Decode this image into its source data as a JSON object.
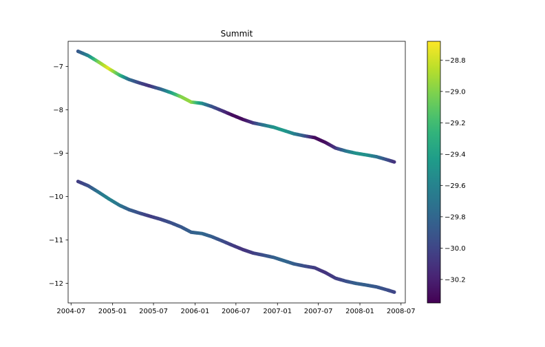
{
  "chart_data": {
    "type": "scatter",
    "title": "Summit",
    "xlabel": "",
    "ylabel": "",
    "x_range": [
      "2004-06-18",
      "2008-07-20"
    ],
    "ylim": [
      -12.45,
      -6.42
    ],
    "grid": false,
    "x_ticks": [
      {
        "date": "2004-07-01",
        "label": "2004-07"
      },
      {
        "date": "2005-01-01",
        "label": "2005-01"
      },
      {
        "date": "2005-07-01",
        "label": "2005-07"
      },
      {
        "date": "2006-01-01",
        "label": "2006-01"
      },
      {
        "date": "2006-07-01",
        "label": "2006-07"
      },
      {
        "date": "2007-01-01",
        "label": "2007-01"
      },
      {
        "date": "2007-07-01",
        "label": "2007-07"
      },
      {
        "date": "2008-01-01",
        "label": "2008-01"
      },
      {
        "date": "2008-07-01",
        "label": "2008-07"
      }
    ],
    "y_ticks": [
      {
        "value": -7,
        "label": "−7"
      },
      {
        "value": -8,
        "label": "−8"
      },
      {
        "value": -9,
        "label": "−9"
      },
      {
        "value": -10,
        "label": "−10"
      },
      {
        "value": -11,
        "label": "−11"
      },
      {
        "value": -12,
        "label": "−12"
      }
    ],
    "colorbar": {
      "cmap": "viridis",
      "vmin": -30.35,
      "vmax": -28.68,
      "ticks": [
        {
          "value": -28.8,
          "label": "−28.8"
        },
        {
          "value": -29.0,
          "label": "−29.0"
        },
        {
          "value": -29.2,
          "label": "−29.2"
        },
        {
          "value": -29.4,
          "label": "−29.4"
        },
        {
          "value": -29.6,
          "label": "−29.6"
        },
        {
          "value": -29.8,
          "label": "−29.8"
        },
        {
          "value": -30.0,
          "label": "−30.0"
        },
        {
          "value": -30.2,
          "label": "−30.2"
        }
      ]
    },
    "series": [
      {
        "points": [
          {
            "x": "2004-08-01",
            "y": -6.65,
            "c": -29.9
          },
          {
            "x": "2004-09-15",
            "y": -6.75,
            "c": -29.6
          },
          {
            "x": "2004-11-01",
            "y": -6.9,
            "c": -29.0
          },
          {
            "x": "2004-12-15",
            "y": -7.05,
            "c": -28.75
          },
          {
            "x": "2005-02-01",
            "y": -7.2,
            "c": -29.2
          },
          {
            "x": "2005-03-15",
            "y": -7.3,
            "c": -29.75
          },
          {
            "x": "2005-05-01",
            "y": -7.38,
            "c": -30.0
          },
          {
            "x": "2005-06-15",
            "y": -7.45,
            "c": -30.1
          },
          {
            "x": "2005-08-01",
            "y": -7.52,
            "c": -29.85
          },
          {
            "x": "2005-09-15",
            "y": -7.6,
            "c": -29.45
          },
          {
            "x": "2005-11-01",
            "y": -7.7,
            "c": -29.0
          },
          {
            "x": "2005-12-15",
            "y": -7.82,
            "c": -28.95
          },
          {
            "x": "2006-02-01",
            "y": -7.85,
            "c": -29.5
          },
          {
            "x": "2006-03-15",
            "y": -7.92,
            "c": -29.9
          },
          {
            "x": "2006-05-01",
            "y": -8.02,
            "c": -30.1
          },
          {
            "x": "2006-06-15",
            "y": -8.12,
            "c": -30.3
          },
          {
            "x": "2006-08-01",
            "y": -8.22,
            "c": -30.3
          },
          {
            "x": "2006-09-15",
            "y": -8.3,
            "c": -30.1
          },
          {
            "x": "2006-11-01",
            "y": -8.35,
            "c": -29.7
          },
          {
            "x": "2006-12-15",
            "y": -8.4,
            "c": -29.5
          },
          {
            "x": "2007-02-01",
            "y": -8.48,
            "c": -29.45
          },
          {
            "x": "2007-03-15",
            "y": -8.55,
            "c": -29.6
          },
          {
            "x": "2007-05-01",
            "y": -8.6,
            "c": -29.9
          },
          {
            "x": "2007-06-15",
            "y": -8.64,
            "c": -30.3
          },
          {
            "x": "2007-08-01",
            "y": -8.75,
            "c": -30.3
          },
          {
            "x": "2007-09-15",
            "y": -8.88,
            "c": -30.1
          },
          {
            "x": "2007-11-01",
            "y": -8.95,
            "c": -29.7
          },
          {
            "x": "2007-12-15",
            "y": -9.0,
            "c": -29.5
          },
          {
            "x": "2008-02-01",
            "y": -9.04,
            "c": -29.5
          },
          {
            "x": "2008-03-15",
            "y": -9.08,
            "c": -29.7
          },
          {
            "x": "2008-05-01",
            "y": -9.15,
            "c": -29.95
          },
          {
            "x": "2008-06-01",
            "y": -9.2,
            "c": -30.1
          }
        ]
      },
      {
        "points": [
          {
            "x": "2004-08-01",
            "y": -9.65,
            "c": -30.05
          },
          {
            "x": "2004-09-15",
            "y": -9.75,
            "c": -29.95
          },
          {
            "x": "2004-11-01",
            "y": -9.9,
            "c": -29.7
          },
          {
            "x": "2004-12-15",
            "y": -10.05,
            "c": -29.6
          },
          {
            "x": "2005-02-01",
            "y": -10.2,
            "c": -29.7
          },
          {
            "x": "2005-03-15",
            "y": -10.3,
            "c": -29.85
          },
          {
            "x": "2005-05-01",
            "y": -10.38,
            "c": -29.95
          },
          {
            "x": "2005-06-15",
            "y": -10.45,
            "c": -30.05
          },
          {
            "x": "2005-08-01",
            "y": -10.52,
            "c": -30.0
          },
          {
            "x": "2005-09-15",
            "y": -10.6,
            "c": -29.95
          },
          {
            "x": "2005-11-01",
            "y": -10.7,
            "c": -29.9
          },
          {
            "x": "2005-12-15",
            "y": -10.82,
            "c": -29.85
          },
          {
            "x": "2006-02-01",
            "y": -10.85,
            "c": -29.8
          },
          {
            "x": "2006-03-15",
            "y": -10.92,
            "c": -29.85
          },
          {
            "x": "2006-05-01",
            "y": -11.02,
            "c": -29.95
          },
          {
            "x": "2006-06-15",
            "y": -11.12,
            "c": -30.05
          },
          {
            "x": "2006-08-01",
            "y": -11.22,
            "c": -30.1
          },
          {
            "x": "2006-09-15",
            "y": -11.3,
            "c": -30.05
          },
          {
            "x": "2006-11-01",
            "y": -11.35,
            "c": -29.95
          },
          {
            "x": "2006-12-15",
            "y": -11.4,
            "c": -29.85
          },
          {
            "x": "2007-02-01",
            "y": -11.48,
            "c": -29.8
          },
          {
            "x": "2007-03-15",
            "y": -11.55,
            "c": -29.85
          },
          {
            "x": "2007-05-01",
            "y": -11.6,
            "c": -29.95
          },
          {
            "x": "2007-06-15",
            "y": -11.64,
            "c": -30.05
          },
          {
            "x": "2007-08-01",
            "y": -11.75,
            "c": -30.1
          },
          {
            "x": "2007-09-15",
            "y": -11.88,
            "c": -30.05
          },
          {
            "x": "2007-11-01",
            "y": -11.95,
            "c": -29.95
          },
          {
            "x": "2007-12-15",
            "y": -12.0,
            "c": -29.85
          },
          {
            "x": "2008-02-01",
            "y": -12.04,
            "c": -29.85
          },
          {
            "x": "2008-03-15",
            "y": -12.08,
            "c": -29.9
          },
          {
            "x": "2008-05-01",
            "y": -12.15,
            "c": -29.95
          },
          {
            "x": "2008-06-01",
            "y": -12.2,
            "c": -30.0
          }
        ]
      }
    ]
  }
}
